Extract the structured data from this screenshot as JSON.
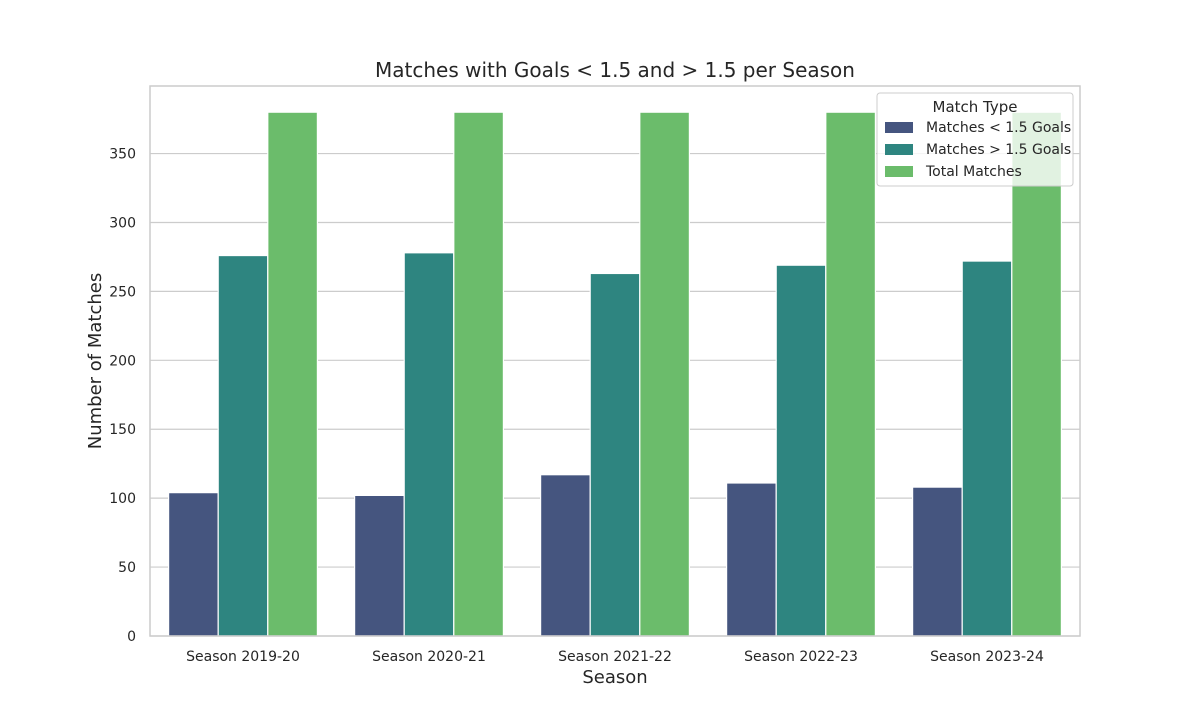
{
  "chart_data": {
    "type": "bar",
    "title": "Matches with Goals < 1.5 and > 1.5 per Season",
    "xlabel": "Season",
    "ylabel": "Number of Matches",
    "categories": [
      "Season 2019-20",
      "Season 2020-21",
      "Season 2021-22",
      "Season 2022-23",
      "Season 2023-24"
    ],
    "series": [
      {
        "name": "Matches < 1.5 Goals",
        "values": [
          104,
          102,
          117,
          111,
          108
        ],
        "color": "#45557f"
      },
      {
        "name": "Matches > 1.5 Goals",
        "values": [
          276,
          278,
          263,
          269,
          272
        ],
        "color": "#2e8580"
      },
      {
        "name": "Total Matches",
        "values": [
          380,
          380,
          380,
          380,
          380
        ],
        "color": "#6bbc6b"
      }
    ],
    "ylim": [
      0,
      399
    ],
    "yticks": [
      0,
      50,
      100,
      150,
      200,
      250,
      300,
      350
    ],
    "grid": true,
    "legend": {
      "title": "Match Type",
      "placement": "top-right"
    }
  }
}
